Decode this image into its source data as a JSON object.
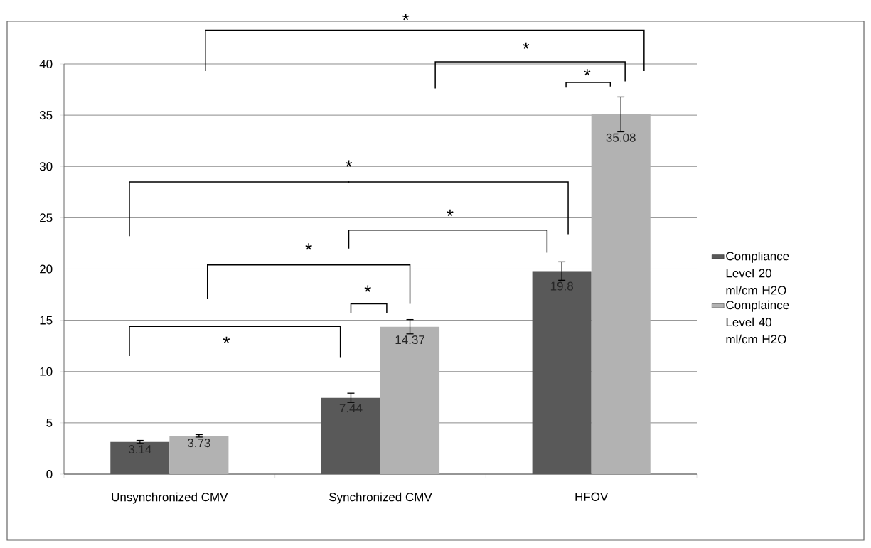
{
  "chart_data": {
    "type": "bar",
    "categories": [
      "Unsynchronized CMV",
      "Synchronized CMV",
      "HFOV"
    ],
    "series": [
      {
        "name": "Compliance Level 20 ml/cm H2O",
        "color": "#595959",
        "values": [
          3.14,
          7.44,
          19.8
        ],
        "errors": [
          0.15,
          0.45,
          0.9
        ]
      },
      {
        "name": "Complaince Level 40 ml/cm H2O",
        "color": "#b2b2b2",
        "values": [
          3.73,
          14.37,
          35.08
        ],
        "errors": [
          0.12,
          0.7,
          1.7
        ]
      }
    ],
    "ylim": [
      0,
      40
    ],
    "yticks": [
      0,
      5,
      10,
      15,
      20,
      25,
      30,
      35,
      40
    ],
    "grid": "y",
    "legend": "right",
    "data_labels": true,
    "annotations": [
      "*",
      "*",
      "*",
      "*",
      "*",
      "*",
      "*",
      "*"
    ]
  }
}
